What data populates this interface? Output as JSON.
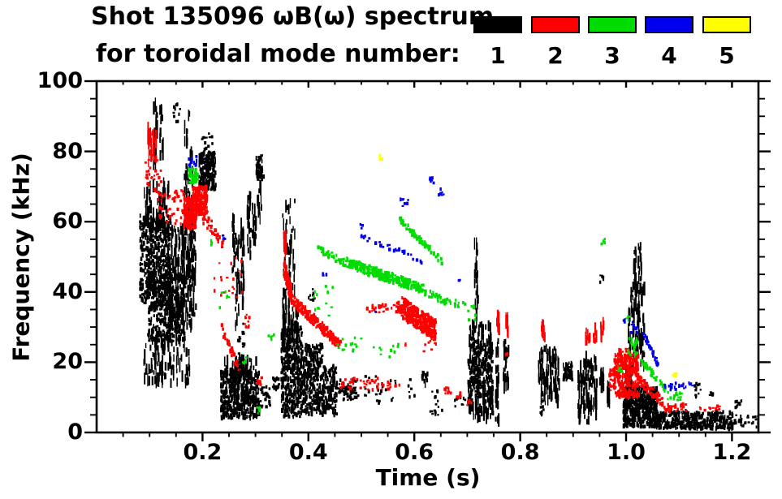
{
  "title": {
    "line1": "Shot 135096 ωB(ω) spectrum",
    "line2": "for toroidal mode number:"
  },
  "legend": {
    "modes": [
      {
        "label": "1",
        "color": "#000000"
      },
      {
        "label": "2",
        "color": "#ff0000"
      },
      {
        "label": "3",
        "color": "#00dc00"
      },
      {
        "label": "4",
        "color": "#0000ee"
      },
      {
        "label": "5",
        "color": "#ffff00"
      }
    ]
  },
  "axes": {
    "xlabel": "Time (s)",
    "ylabel": "Frequency (kHz)",
    "x_tick_labels": [
      "0.2",
      "0.4",
      "0.6",
      "0.8",
      "1.0",
      "1.2"
    ],
    "y_tick_labels": [
      "0",
      "20",
      "40",
      "60",
      "80",
      "100"
    ]
  },
  "chart_data": {
    "type": "scatter",
    "title": "Shot 135096 ωB(ω) spectrum for toroidal mode number: 1-5",
    "xlabel": "Time (s)",
    "ylabel": "Frequency (kHz)",
    "xlim": [
      0,
      1.25
    ],
    "ylim": [
      0,
      100
    ],
    "x_major_ticks": [
      0.2,
      0.4,
      0.6,
      0.8,
      1.0,
      1.2
    ],
    "x_minor_step": 0.05,
    "y_major_ticks": [
      0,
      20,
      40,
      60,
      80,
      100
    ],
    "y_minor_step": 5,
    "grid": false,
    "legend_position": "top",
    "cluster_format": "[t_start_s, t_end_s, f_start_kHz, f_end_kHz, n_points, style(blob|streak|dots|trace), trace_thickness_kHz]",
    "series": [
      {
        "name": "1",
        "color": "#000000",
        "clusters": [
          [
            0.08,
            0.14,
            36,
            62,
            550,
            "blob"
          ],
          [
            0.095,
            0.165,
            26,
            45,
            400,
            "blob"
          ],
          [
            0.132,
            0.186,
            30,
            58,
            190,
            "streak"
          ],
          [
            0.085,
            0.135,
            58,
            71,
            70,
            "streak"
          ],
          [
            0.088,
            0.175,
            14,
            27,
            100,
            "streak"
          ],
          [
            0.106,
            0.125,
            76,
            95,
            40,
            "streak"
          ],
          [
            0.143,
            0.156,
            88,
            94,
            12,
            "dots"
          ],
          [
            0.164,
            0.18,
            62,
            93,
            38,
            "streak"
          ],
          [
            0.16,
            0.18,
            46,
            62,
            55,
            "streak"
          ],
          [
            0.192,
            0.223,
            69,
            80,
            230,
            "blob"
          ],
          [
            0.196,
            0.218,
            80,
            86,
            14,
            "dots"
          ],
          [
            0.3,
            0.313,
            72,
            79,
            50,
            "blob"
          ],
          [
            0.302,
            0.31,
            60,
            71,
            14,
            "streak"
          ],
          [
            0.255,
            0.261,
            46,
            62,
            20,
            "streak"
          ],
          [
            0.261,
            0.268,
            30,
            55,
            26,
            "streak"
          ],
          [
            0.27,
            0.277,
            36,
            60,
            28,
            "streak"
          ],
          [
            0.283,
            0.29,
            50,
            68,
            24,
            "streak"
          ],
          [
            0.293,
            0.299,
            54,
            66,
            16,
            "streak"
          ],
          [
            0.265,
            0.278,
            18,
            32,
            16,
            "dots"
          ],
          [
            0.233,
            0.305,
            4,
            17.5,
            520,
            "blob"
          ],
          [
            0.24,
            0.3,
            16,
            21,
            55,
            "streak"
          ],
          [
            0.306,
            0.326,
            7,
            13,
            28,
            "dots"
          ],
          [
            0.331,
            0.343,
            12,
            15.5,
            24,
            "blob"
          ],
          [
            0.347,
            0.386,
            4.5,
            30,
            450,
            "blob"
          ],
          [
            0.35,
            0.38,
            28,
            35,
            45,
            "streak"
          ],
          [
            0.386,
            0.425,
            5,
            25,
            300,
            "blob"
          ],
          [
            0.425,
            0.452,
            5,
            19,
            140,
            "blob"
          ],
          [
            0.452,
            0.492,
            9,
            15,
            40,
            "dots"
          ],
          [
            0.457,
            0.488,
            11.5,
            13,
            22,
            "dots"
          ],
          [
            0.35,
            0.373,
            32,
            66,
            55,
            "streak"
          ],
          [
            0.398,
            0.412,
            37,
            42,
            8,
            "dots"
          ],
          [
            0.5,
            0.6,
            8,
            16,
            28,
            "dots"
          ],
          [
            0.612,
            0.625,
            13,
            17,
            14,
            "blob"
          ],
          [
            0.628,
            0.652,
            5,
            12,
            16,
            "dots"
          ],
          [
            0.673,
            0.695,
            7,
            10,
            10,
            "dots"
          ],
          [
            0.7,
            0.746,
            10,
            26,
            340,
            "blob"
          ],
          [
            0.702,
            0.744,
            26,
            31,
            36,
            "streak"
          ],
          [
            0.7,
            0.748,
            4,
            10,
            60,
            "streak"
          ],
          [
            0.712,
            0.719,
            42,
            54,
            14,
            "streak"
          ],
          [
            0.713,
            0.72,
            31,
            41,
            10,
            "streak"
          ],
          [
            0.752,
            0.758,
            3,
            26,
            24,
            "streak"
          ],
          [
            0.767,
            0.777,
            12,
            26,
            28,
            "streak"
          ],
          [
            0.833,
            0.873,
            8,
            24,
            100,
            "streak"
          ],
          [
            0.836,
            0.842,
            5,
            9,
            8,
            "dots"
          ],
          [
            0.878,
            0.897,
            15,
            20,
            65,
            "blob"
          ],
          [
            0.908,
            0.943,
            3,
            21.5,
            110,
            "streak"
          ],
          [
            0.948,
            0.956,
            12,
            17.5,
            18,
            "streak"
          ],
          [
            0.962,
            0.968,
            7.5,
            14,
            16,
            "streak"
          ],
          [
            0.949,
            0.956,
            42,
            45,
            6,
            "dots"
          ],
          [
            1.003,
            1.033,
            18,
            42,
            100,
            "streak"
          ],
          [
            1.013,
            1.028,
            40,
            53,
            36,
            "streak"
          ],
          [
            0.998,
            1.01,
            12,
            18,
            22,
            "streak"
          ],
          [
            0.993,
            1.058,
            1.5,
            13,
            500,
            "blob"
          ],
          [
            1.055,
            1.2,
            1,
            6,
            380,
            "blob"
          ],
          [
            1.2,
            1.248,
            1.5,
            5,
            28,
            "dots"
          ],
          [
            1.127,
            1.14,
            10,
            14,
            12,
            "dots"
          ],
          [
            1.156,
            1.168,
            10,
            12,
            6,
            "dots"
          ],
          [
            1.204,
            1.216,
            7,
            9,
            8,
            "dots"
          ]
        ]
      },
      {
        "name": "2",
        "color": "#ff0000",
        "clusters": [
          [
            0.095,
            0.112,
            76,
            87,
            40,
            "streak"
          ],
          [
            0.09,
            0.12,
            68,
            78,
            32,
            "dots"
          ],
          [
            0.112,
            0.168,
            58,
            69,
            50,
            "dots"
          ],
          [
            0.163,
            0.186,
            58,
            67,
            170,
            "blob"
          ],
          [
            0.18,
            0.208,
            62,
            70,
            185,
            "blob"
          ],
          [
            0.197,
            0.237,
            62,
            54,
            38,
            "trace",
            4
          ],
          [
            0.22,
            0.275,
            38,
            50,
            20,
            "dots"
          ],
          [
            0.233,
            0.267,
            30,
            17.5,
            32,
            "trace",
            2.5
          ],
          [
            0.278,
            0.287,
            29,
            34,
            10,
            "dots"
          ],
          [
            0.3,
            0.31,
            13,
            16,
            8,
            "dots"
          ],
          [
            0.352,
            0.358,
            51,
            57,
            12,
            "streak"
          ],
          [
            0.352,
            0.366,
            47,
            39,
            100,
            "trace",
            5
          ],
          [
            0.366,
            0.458,
            38,
            25,
            190,
            "trace",
            3
          ],
          [
            0.458,
            0.578,
            12,
            15.5,
            50,
            "dots"
          ],
          [
            0.508,
            0.572,
            34,
            36.5,
            28,
            "dots"
          ],
          [
            0.565,
            0.574,
            34,
            37,
            14,
            "blob"
          ],
          [
            0.574,
            0.638,
            35.5,
            29,
            330,
            "trace",
            6
          ],
          [
            0.58,
            0.64,
            23,
            27,
            10,
            "dots"
          ],
          [
            0.655,
            0.668,
            11,
            13,
            8,
            "dots"
          ],
          [
            0.678,
            0.686,
            10,
            11.5,
            6,
            "dots"
          ],
          [
            0.698,
            0.706,
            7.5,
            9.5,
            6,
            "dots"
          ],
          [
            0.768,
            0.775,
            22,
            23.5,
            4,
            "dots"
          ],
          [
            0.754,
            0.759,
            29,
            34.5,
            13,
            "streak"
          ],
          [
            0.771,
            0.777,
            28.5,
            33,
            11,
            "streak"
          ],
          [
            0.838,
            0.845,
            27,
            31,
            11,
            "streak"
          ],
          [
            0.922,
            0.93,
            24.5,
            29,
            11,
            "streak"
          ],
          [
            0.937,
            0.944,
            26,
            30,
            9,
            "streak"
          ],
          [
            0.95,
            0.957,
            27,
            31,
            9,
            "streak"
          ],
          [
            0.975,
            1.022,
            10,
            22,
            300,
            "blob"
          ],
          [
            0.982,
            1.012,
            19,
            24,
            36,
            "dots"
          ],
          [
            0.966,
            0.976,
            12,
            18,
            22,
            "dots"
          ],
          [
            1.022,
            1.068,
            15,
            8.5,
            65,
            "trace",
            2.5
          ],
          [
            1.068,
            1.112,
            5.8,
            8.2,
            32,
            "dots"
          ],
          [
            1.133,
            1.175,
            5.8,
            7.5,
            12,
            "dots"
          ]
        ]
      },
      {
        "name": "3",
        "color": "#00dc00",
        "clusters": [
          [
            0.172,
            0.19,
            71,
            75,
            50,
            "blob"
          ],
          [
            0.213,
            0.219,
            53,
            55,
            4,
            "dots"
          ],
          [
            0.23,
            0.25,
            35,
            41,
            7,
            "dots"
          ],
          [
            0.274,
            0.281,
            19.5,
            21.5,
            5,
            "dots"
          ],
          [
            0.297,
            0.306,
            5,
            7.5,
            4,
            "dots"
          ],
          [
            0.322,
            0.333,
            26,
            28,
            5,
            "dots"
          ],
          [
            0.415,
            0.468,
            52.5,
            48,
            36,
            "trace",
            2
          ],
          [
            0.468,
            0.618,
            48.5,
            40.5,
            260,
            "trace",
            2.8
          ],
          [
            0.618,
            0.668,
            40,
            36.5,
            36,
            "trace",
            2
          ],
          [
            0.67,
            0.695,
            35,
            38,
            8,
            "dots"
          ],
          [
            0.57,
            0.65,
            60.5,
            48.8,
            75,
            "trace",
            1.8
          ],
          [
            0.408,
            0.446,
            33,
            42,
            12,
            "dots"
          ],
          [
            0.45,
            0.502,
            23,
            27,
            14,
            "dots"
          ],
          [
            0.518,
            0.568,
            21.5,
            25.5,
            10,
            "dots"
          ],
          [
            0.698,
            0.714,
            31,
            38,
            8,
            "dots"
          ],
          [
            0.95,
            0.958,
            53.5,
            55.5,
            5,
            "dots"
          ],
          [
            0.998,
            1.006,
            31.5,
            33,
            4,
            "dots"
          ],
          [
            1.002,
            1.02,
            22,
            27,
            26,
            "blob"
          ],
          [
            1.026,
            1.072,
            20.5,
            12.5,
            50,
            "trace",
            2
          ],
          [
            1.076,
            1.104,
            9,
            11.5,
            15,
            "dots"
          ],
          [
            0.982,
            0.99,
            17,
            18.5,
            5,
            "dots"
          ]
        ]
      },
      {
        "name": "4",
        "color": "#0000ee",
        "clusters": [
          [
            0.172,
            0.188,
            76,
            80,
            12,
            "blob"
          ],
          [
            0.236,
            0.242,
            55,
            56.5,
            3,
            "dots"
          ],
          [
            0.496,
            0.612,
            56,
            49,
            30,
            "trace",
            1.5
          ],
          [
            0.572,
            0.591,
            64,
            67,
            9,
            "dots"
          ],
          [
            0.627,
            0.637,
            71,
            73.5,
            6,
            "dots"
          ],
          [
            0.641,
            0.657,
            67.5,
            70.5,
            8,
            "dots"
          ],
          [
            0.425,
            0.432,
            44.5,
            46,
            3,
            "dots"
          ],
          [
            0.494,
            0.5,
            58,
            59.5,
            3,
            "dots"
          ],
          [
            0.678,
            0.685,
            42,
            43.5,
            3,
            "dots"
          ],
          [
            0.524,
            0.529,
            33.5,
            34.5,
            2,
            "dots"
          ],
          [
            0.992,
            0.999,
            31,
            32.5,
            4,
            "dots"
          ],
          [
            1.006,
            1.02,
            27.5,
            31.5,
            12,
            "dots"
          ],
          [
            1.03,
            1.058,
            28.5,
            19.5,
            26,
            "trace",
            1.8
          ],
          [
            1.066,
            1.112,
            12,
            14,
            20,
            "dots"
          ],
          [
            1.117,
            1.126,
            13,
            14.2,
            4,
            "dots"
          ]
        ]
      },
      {
        "name": "5",
        "color": "#ffff00",
        "clusters": [
          [
            0.532,
            0.539,
            77.5,
            79.5,
            4,
            "dots"
          ],
          [
            1.084,
            1.093,
            15.8,
            17.2,
            5,
            "dots"
          ]
        ]
      }
    ]
  }
}
